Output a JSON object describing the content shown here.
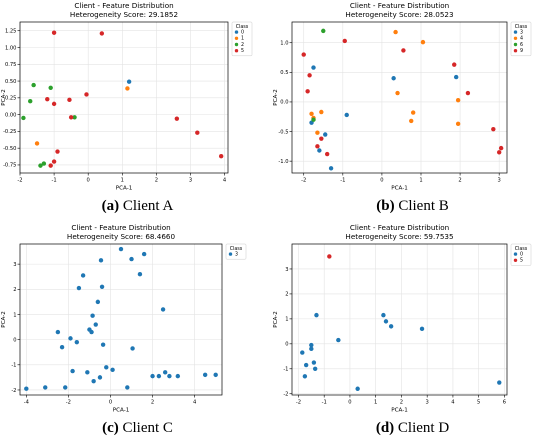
{
  "captions": [
    {
      "tag": "(a)",
      "text": "Client A"
    },
    {
      "tag": "(b)",
      "text": "Client B"
    },
    {
      "tag": "(c)",
      "text": "Client C"
    },
    {
      "tag": "(d)",
      "text": "Client D"
    }
  ],
  "palette": {
    "0": "#1f77b4",
    "1": "#ff7f0e",
    "2": "#2ca02c",
    "3": "#1f77b4",
    "4": "#ff7f0e",
    "5": "#d62728",
    "6": "#2ca02c",
    "9": "#d62728"
  },
  "chart_data": [
    {
      "type": "scatter",
      "title": "Client - Feature Distribution",
      "subtitle": "Heterogeneity Score: 29.1852",
      "xlabel": "PCA-1",
      "ylabel": "PCA-2",
      "xlim": [
        -2.0,
        4.1
      ],
      "ylim": [
        -0.87,
        1.38
      ],
      "xticks": [
        -2,
        -1,
        0,
        1,
        2,
        3,
        4
      ],
      "yticks": [
        -0.75,
        -0.5,
        -0.25,
        0.0,
        0.25,
        0.5,
        0.75,
        1.0,
        1.25
      ],
      "ytick_labels": [
        "-0.75",
        "-0.50",
        "-0.25",
        "0.00",
        "0.25",
        "0.50",
        "0.75",
        "1.00",
        "1.25"
      ],
      "grid": true,
      "legend": {
        "title": "Class",
        "placement": "top-right",
        "entries": [
          "0",
          "1",
          "2",
          "5"
        ]
      },
      "series": [
        {
          "name": "0",
          "points": [
            [
              1.2,
              0.49
            ]
          ]
        },
        {
          "name": "1",
          "points": [
            [
              1.15,
              0.39
            ],
            [
              -1.5,
              -0.43
            ]
          ]
        },
        {
          "name": "2",
          "points": [
            [
              -1.9,
              -0.05
            ],
            [
              -1.7,
              0.2
            ],
            [
              -1.4,
              -0.76
            ],
            [
              -0.4,
              -0.04
            ],
            [
              -1.1,
              0.4
            ],
            [
              -1.6,
              0.44
            ],
            [
              -1.3,
              -0.73
            ]
          ]
        },
        {
          "name": "5",
          "points": [
            [
              -1.0,
              1.22
            ],
            [
              0.4,
              1.21
            ],
            [
              -1.2,
              0.23
            ],
            [
              -1.1,
              -0.76
            ],
            [
              -1.0,
              -0.7
            ],
            [
              -0.9,
              -0.55
            ],
            [
              -0.55,
              0.22
            ],
            [
              -0.05,
              0.3
            ],
            [
              -0.5,
              -0.04
            ],
            [
              -1.0,
              0.16
            ],
            [
              2.6,
              -0.06
            ],
            [
              3.2,
              -0.27
            ],
            [
              3.9,
              -0.62
            ]
          ]
        }
      ]
    },
    {
      "type": "scatter",
      "title": "Client - Feature Distribution",
      "subtitle": "Heterogeneity Score: 28.0523",
      "xlabel": "PCA-1",
      "ylabel": "PCA-2",
      "xlim": [
        -2.3,
        3.2
      ],
      "ylim": [
        -1.2,
        1.35
      ],
      "xticks": [
        -2,
        -1,
        0,
        1,
        2,
        3
      ],
      "yticks": [
        -1.0,
        -0.5,
        0.0,
        0.5,
        1.0
      ],
      "ytick_labels": [
        "-1.0",
        "-0.5",
        "0.0",
        "0.5",
        "1.0"
      ],
      "grid": true,
      "legend": {
        "title": "Class",
        "placement": "top-right",
        "entries": [
          "3",
          "4",
          "6",
          "9"
        ]
      },
      "series": [
        {
          "name": "3",
          "points": [
            [
              -1.75,
              0.58
            ],
            [
              -1.45,
              -0.55
            ],
            [
              -1.3,
              -1.12
            ],
            [
              -0.9,
              -0.22
            ],
            [
              0.3,
              0.4
            ],
            [
              1.9,
              0.42
            ],
            [
              -1.6,
              -0.82
            ],
            [
              -1.8,
              -0.35
            ]
          ]
        },
        {
          "name": "4",
          "points": [
            [
              -1.75,
              -0.27
            ],
            [
              -1.65,
              -0.52
            ],
            [
              -1.55,
              -0.17
            ],
            [
              0.35,
              1.18
            ],
            [
              0.4,
              0.15
            ],
            [
              0.8,
              -0.18
            ],
            [
              1.05,
              1.01
            ],
            [
              1.95,
              0.03
            ],
            [
              0.75,
              -0.32
            ],
            [
              1.95,
              -0.37
            ],
            [
              -1.8,
              -0.2
            ]
          ]
        },
        {
          "name": "6",
          "points": [
            [
              -1.5,
              1.2
            ],
            [
              -1.75,
              -0.3
            ]
          ]
        },
        {
          "name": "9",
          "points": [
            [
              -2.0,
              0.8
            ],
            [
              -1.85,
              0.45
            ],
            [
              -1.9,
              0.18
            ],
            [
              -1.55,
              -0.62
            ],
            [
              -1.4,
              -0.88
            ],
            [
              -0.95,
              1.03
            ],
            [
              0.55,
              0.87
            ],
            [
              1.85,
              0.63
            ],
            [
              2.2,
              0.15
            ],
            [
              2.85,
              -0.46
            ],
            [
              3.05,
              -0.78
            ],
            [
              3.0,
              -0.85
            ],
            [
              -1.65,
              -0.75
            ]
          ]
        }
      ]
    },
    {
      "type": "scatter",
      "title": "Client - Feature Distribution",
      "subtitle": "Heterogeneity Score: 68.4660",
      "xlabel": "PCA-1",
      "ylabel": "PCA-2",
      "xlim": [
        -4.3,
        5.3
      ],
      "ylim": [
        -2.2,
        3.8
      ],
      "xticks": [
        -4,
        -2,
        0,
        2,
        4
      ],
      "yticks": [
        -2,
        -1,
        0,
        1,
        2,
        3
      ],
      "ytick_labels": [
        "-2",
        "-1",
        "0",
        "1",
        "2",
        "3"
      ],
      "grid": true,
      "legend": {
        "title": "Class",
        "placement": "top-right",
        "entries": [
          "3"
        ]
      },
      "series": [
        {
          "name": "3",
          "points": [
            [
              -4.0,
              -1.95
            ],
            [
              -3.1,
              -1.9
            ],
            [
              -2.5,
              0.3
            ],
            [
              -2.3,
              -0.3
            ],
            [
              -2.15,
              -1.9
            ],
            [
              -1.9,
              0.05
            ],
            [
              -1.8,
              -1.25
            ],
            [
              -1.6,
              -0.1
            ],
            [
              -1.5,
              2.05
            ],
            [
              -1.3,
              2.55
            ],
            [
              -1.1,
              -1.3
            ],
            [
              -1.0,
              0.4
            ],
            [
              -0.9,
              0.3
            ],
            [
              -0.85,
              0.95
            ],
            [
              -0.8,
              -1.65
            ],
            [
              -0.7,
              0.6
            ],
            [
              -0.6,
              1.5
            ],
            [
              -0.5,
              -1.5
            ],
            [
              -0.45,
              3.15
            ],
            [
              -0.4,
              2.1
            ],
            [
              -0.35,
              -0.2
            ],
            [
              -0.2,
              -1.1
            ],
            [
              0.1,
              -1.2
            ],
            [
              0.5,
              3.6
            ],
            [
              0.8,
              -1.9
            ],
            [
              1.0,
              3.2
            ],
            [
              1.05,
              -0.35
            ],
            [
              1.4,
              2.6
            ],
            [
              1.6,
              3.4
            ],
            [
              2.0,
              -1.45
            ],
            [
              2.3,
              -1.45
            ],
            [
              2.5,
              1.2
            ],
            [
              2.6,
              -1.3
            ],
            [
              2.8,
              -1.45
            ],
            [
              3.2,
              -1.45
            ],
            [
              4.5,
              -1.4
            ],
            [
              5.0,
              -1.4
            ]
          ]
        }
      ]
    },
    {
      "type": "scatter",
      "title": "Client - Feature Distribution",
      "subtitle": "Heterogeneity Score: 59.7535",
      "xlabel": "PCA-1",
      "ylabel": "PCA-2",
      "xlim": [
        -2.25,
        6.1
      ],
      "ylim": [
        -2.05,
        4.0
      ],
      "xticks": [
        -2,
        -1,
        0,
        1,
        2,
        3,
        4,
        5,
        6
      ],
      "yticks": [
        -2,
        -1,
        0,
        1,
        2,
        3
      ],
      "ytick_labels": [
        "-2",
        "-1",
        "0",
        "1",
        "2",
        "3"
      ],
      "grid": true,
      "legend": {
        "title": "Class",
        "placement": "top-right",
        "entries": [
          "0",
          "5"
        ]
      },
      "series": [
        {
          "name": "0",
          "points": [
            [
              -1.85,
              -0.35
            ],
            [
              -1.75,
              -1.3
            ],
            [
              -1.7,
              -0.85
            ],
            [
              -1.5,
              -0.05
            ],
            [
              -1.5,
              -0.2
            ],
            [
              -1.4,
              -0.75
            ],
            [
              -1.35,
              -1.0
            ],
            [
              -1.3,
              1.15
            ],
            [
              -0.45,
              0.15
            ],
            [
              0.3,
              -1.8
            ],
            [
              1.3,
              1.15
            ],
            [
              1.4,
              0.9
            ],
            [
              1.6,
              0.7
            ],
            [
              2.8,
              0.6
            ],
            [
              5.8,
              -1.55
            ]
          ]
        },
        {
          "name": "5",
          "points": [
            [
              -0.8,
              3.5
            ]
          ]
        }
      ]
    }
  ]
}
